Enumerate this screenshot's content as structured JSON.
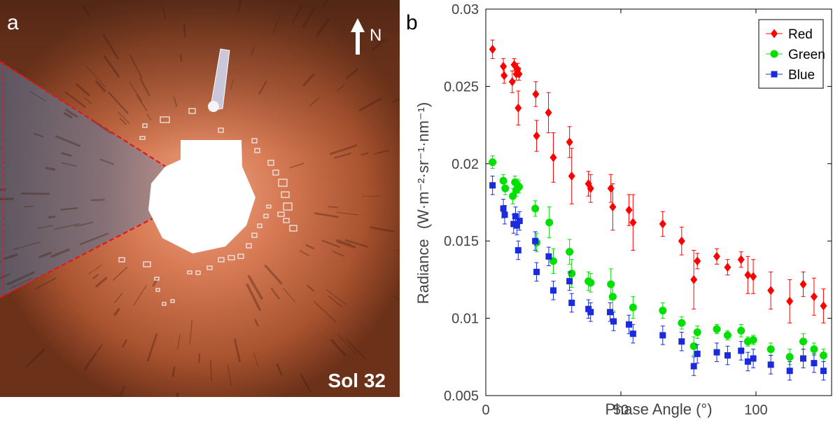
{
  "panel_a": {
    "label": "a",
    "north_label": "N",
    "sol_label": "Sol 32",
    "colors": {
      "sky": "#7a3a1f",
      "soil": "#c86a45",
      "wedge": "#6e6878",
      "fov_line": "#e01818",
      "mask": "#ffffff",
      "box": "#f2f2f2"
    }
  },
  "panel_b": {
    "label": "b"
  },
  "chart_data": {
    "type": "scatter",
    "title": "",
    "xlabel": "Phase Angle (°)",
    "ylabel_prefix": "Radiance",
    "ylabel_unit_display": "(W·m⁻²·sr⁻¹·nm⁻¹)",
    "xlim": [
      0,
      128
    ],
    "ylim": [
      0.005,
      0.03
    ],
    "x_ticks": [
      0,
      50,
      100
    ],
    "x_tick_labels": [
      "0",
      "50",
      "100"
    ],
    "y_ticks": [
      0.005,
      0.01,
      0.015,
      0.02,
      0.025,
      0.03
    ],
    "y_tick_labels": [
      "0.005",
      "0.01",
      "0.015",
      "0.02",
      "0.025",
      "0.03"
    ],
    "grid": false,
    "legend_position": "top-right",
    "series": [
      {
        "name": "Red",
        "color": "#ff0000",
        "marker": "diamond",
        "x": [
          2.5,
          6.5,
          6.8,
          9.8,
          10.5,
          11.3,
          11.8,
          12.3,
          12.0,
          18.5,
          18.8,
          23.2,
          25.0,
          31.0,
          31.8,
          38.0,
          38.8,
          46.3,
          47.0,
          53.0,
          54.5,
          65.5,
          72.5,
          77.0,
          78.3,
          85.5,
          89.5,
          94.5,
          97.0,
          99.0,
          105.5,
          112.5,
          117.5,
          121.5,
          125.0
        ],
        "y": [
          0.0274,
          0.0263,
          0.0257,
          0.0253,
          0.0264,
          0.0258,
          0.0261,
          0.0258,
          0.0236,
          0.0245,
          0.0218,
          0.0233,
          0.0204,
          0.0214,
          0.0192,
          0.0187,
          0.0184,
          0.0184,
          0.0172,
          0.017,
          0.0162,
          0.0161,
          0.015,
          0.0125,
          0.0137,
          0.014,
          0.0133,
          0.0138,
          0.0128,
          0.0127,
          0.0118,
          0.0111,
          0.0122,
          0.0114,
          0.0108
        ],
        "err": [
          0.0006,
          0.0005,
          0.0005,
          0.0007,
          0.0004,
          0.0004,
          0.0004,
          0.0004,
          0.0011,
          0.0008,
          0.001,
          0.0013,
          0.0016,
          0.001,
          0.0018,
          0.0008,
          0.0009,
          0.0009,
          0.0015,
          0.001,
          0.0018,
          0.0008,
          0.0009,
          0.0019,
          0.0005,
          0.0005,
          0.0005,
          0.0005,
          0.0012,
          0.0011,
          0.0012,
          0.0014,
          0.0008,
          0.0012,
          0.0011
        ]
      },
      {
        "name": "Green",
        "color": "#00e000",
        "marker": "circle",
        "x": [
          2.5,
          6.5,
          7.2,
          10.0,
          10.8,
          11.3,
          11.8,
          12.3,
          18.3,
          18.8,
          23.5,
          25.0,
          31.0,
          31.8,
          38.0,
          38.8,
          46.3,
          47.0,
          54.5,
          65.5,
          72.5,
          77.0,
          78.3,
          85.5,
          89.5,
          94.5,
          97.0,
          99.0,
          105.5,
          112.5,
          117.5,
          121.5,
          125.0
        ],
        "y": [
          0.0201,
          0.0189,
          0.0184,
          0.0179,
          0.0188,
          0.0183,
          0.0186,
          0.0185,
          0.0171,
          0.0149,
          0.0162,
          0.0137,
          0.0143,
          0.0129,
          0.0124,
          0.0123,
          0.0122,
          0.0114,
          0.0107,
          0.0105,
          0.0097,
          0.0082,
          0.0091,
          0.0093,
          0.0089,
          0.0092,
          0.0085,
          0.0086,
          0.008,
          0.0075,
          0.0085,
          0.008,
          0.0076
        ],
        "err": [
          0.0004,
          0.0004,
          0.0004,
          0.0005,
          0.0004,
          0.0004,
          0.0004,
          0.0004,
          0.0005,
          0.0006,
          0.001,
          0.0008,
          0.0008,
          0.0009,
          0.0006,
          0.0006,
          0.001,
          0.0009,
          0.0007,
          0.0005,
          0.0004,
          0.0006,
          0.0004,
          0.0003,
          0.0003,
          0.0004,
          0.0003,
          0.0003,
          0.0004,
          0.0005,
          0.0005,
          0.0004,
          0.0004
        ]
      },
      {
        "name": "Blue",
        "color": "#1a2bd9",
        "marker": "square",
        "x": [
          2.5,
          6.5,
          7.0,
          10.3,
          11.0,
          11.5,
          12.0,
          12.5,
          18.3,
          18.8,
          23.3,
          25.0,
          31.0,
          31.8,
          38.0,
          38.8,
          46.0,
          47.3,
          53.0,
          54.5,
          65.5,
          72.5,
          77.0,
          78.3,
          85.5,
          89.5,
          94.5,
          97.0,
          99.0,
          105.5,
          112.5,
          117.5,
          121.5,
          125.0
        ],
        "y": [
          0.0186,
          0.0171,
          0.0167,
          0.0161,
          0.0166,
          0.016,
          0.0144,
          0.0163,
          0.015,
          0.013,
          0.014,
          0.0118,
          0.0124,
          0.011,
          0.0106,
          0.0104,
          0.0104,
          0.0098,
          0.0096,
          0.009,
          0.0089,
          0.0085,
          0.0069,
          0.0077,
          0.0078,
          0.0076,
          0.0079,
          0.0072,
          0.0074,
          0.007,
          0.0066,
          0.0074,
          0.0071,
          0.0066
        ]
      }
    ]
  }
}
